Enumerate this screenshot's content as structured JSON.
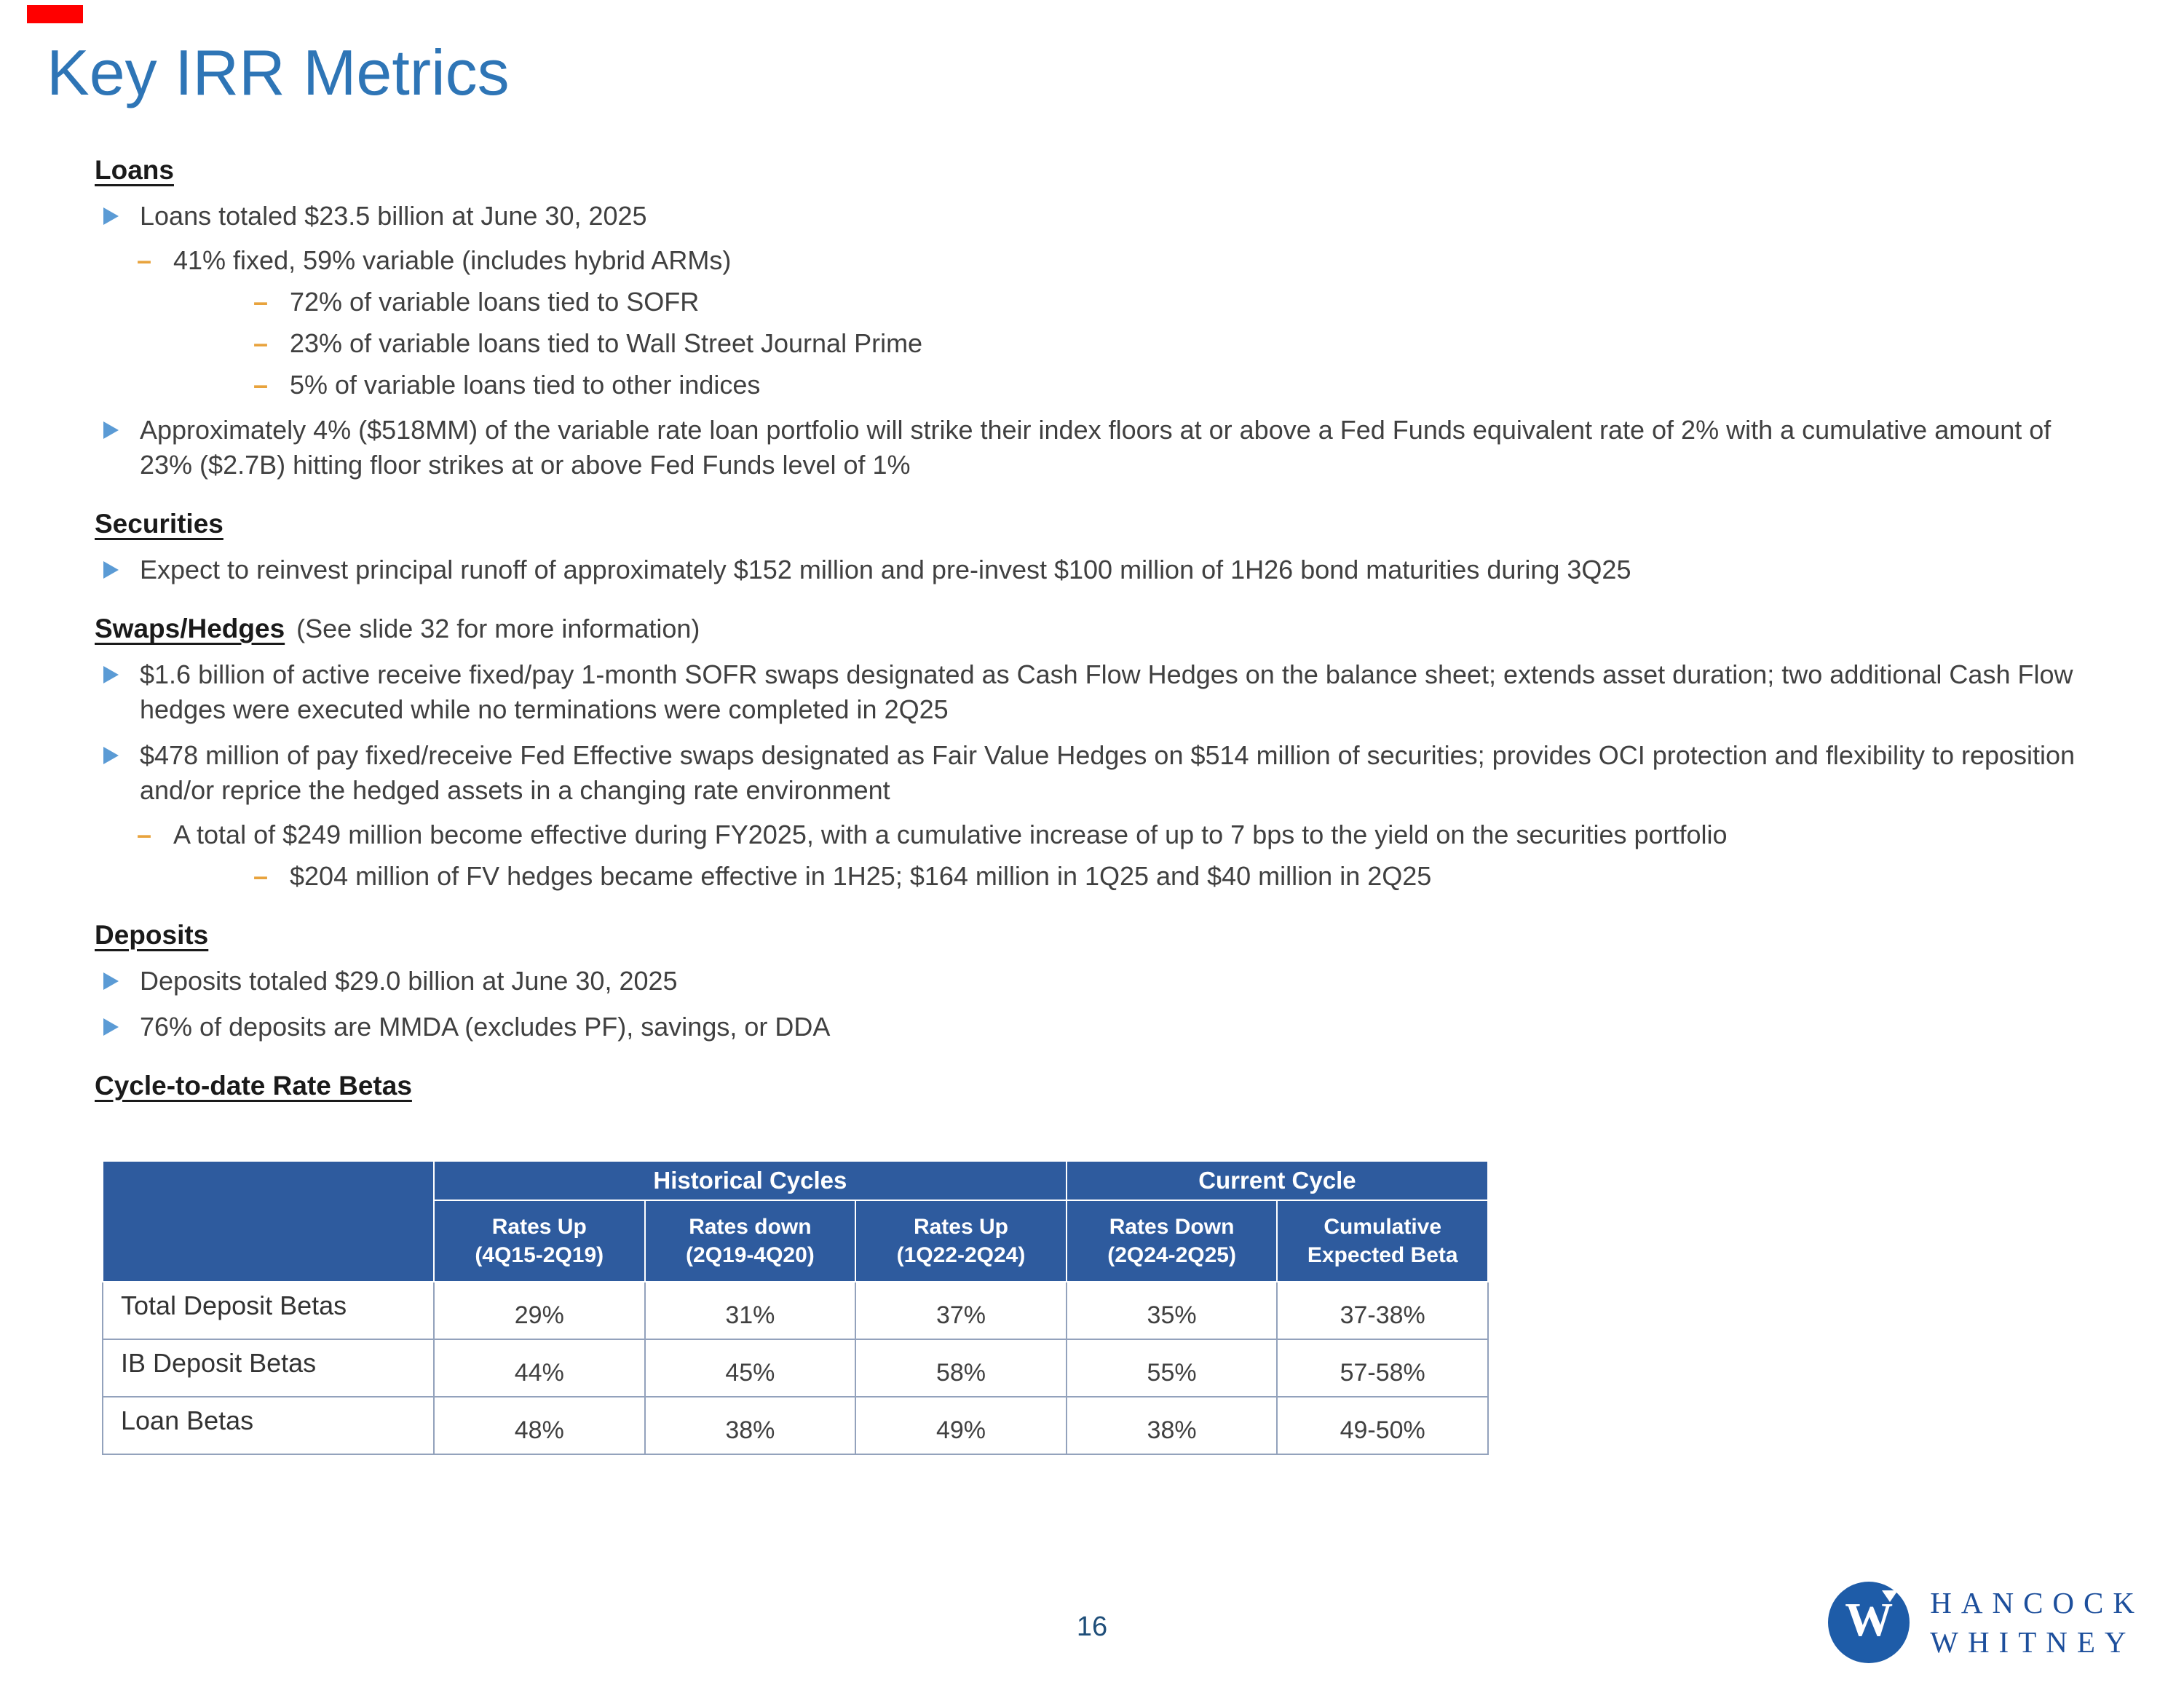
{
  "slide": {
    "title": "Key IRR Metrics",
    "page_number": "16"
  },
  "sections": {
    "loans": {
      "heading": "Loans",
      "bullet1": "Loans totaled $23.5 billion at June 30, 2025",
      "sub1": "41% fixed, 59% variable (includes hybrid ARMs)",
      "sub1a": "72% of variable loans tied to SOFR",
      "sub1b": "23% of variable loans tied to Wall Street Journal Prime",
      "sub1c": "5% of variable loans tied to other indices",
      "bullet2": "Approximately 4% ($518MM) of the variable rate loan portfolio will strike their index floors at or above a Fed Funds equivalent rate of 2% with a cumulative amount of 23% ($2.7B) hitting floor strikes at or above Fed Funds level of 1%"
    },
    "securities": {
      "heading": "Securities",
      "bullet1": "Expect to reinvest principal runoff of approximately $152 million and pre-invest $100 million of 1H26 bond maturities during 3Q25"
    },
    "swaps": {
      "heading": "Swaps/Hedges",
      "note": "(See slide 32 for more information)",
      "bullet1": "$1.6 billion of active receive fixed/pay 1-month SOFR swaps designated as Cash Flow Hedges on the balance sheet; extends asset duration; two additional Cash Flow hedges were executed while no terminations were completed in 2Q25",
      "bullet2": "$478 million of pay fixed/receive Fed Effective swaps designated as Fair Value Hedges on $514 million of securities; provides OCI protection and flexibility to reposition and/or reprice the hedged assets in a changing rate environment",
      "sub1": "A total of $249 million become effective during FY2025, with a cumulative increase of up to 7 bps to the yield on the securities portfolio",
      "sub1a": "$204 million of FV hedges became effective in 1H25; $164 million in 1Q25 and $40 million in 2Q25"
    },
    "deposits": {
      "heading": "Deposits",
      "bullet1": "Deposits totaled $29.0 billion at June 30, 2025",
      "bullet2": "76% of deposits are MMDA (excludes PF), savings, or DDA"
    },
    "betas": {
      "heading": "Cycle-to-date Rate Betas"
    }
  },
  "table": {
    "group_headers": [
      "Historical Cycles",
      "Current Cycle"
    ],
    "columns": [
      {
        "line1": "Rates Up",
        "line2": "(4Q15-2Q19)"
      },
      {
        "line1": "Rates down",
        "line2": "(2Q19-4Q20)"
      },
      {
        "line1": "Rates Up",
        "line2": "(1Q22-2Q24)"
      },
      {
        "line1": "Rates Down",
        "line2": "(2Q24-2Q25)"
      },
      {
        "line1": "Cumulative",
        "line2": "Expected Beta"
      }
    ],
    "rows": [
      {
        "label": "Total Deposit Betas",
        "values": [
          "29%",
          "31%",
          "37%",
          "35%",
          "37-38%"
        ]
      },
      {
        "label": "IB Deposit Betas",
        "values": [
          "44%",
          "45%",
          "58%",
          "55%",
          "57-58%"
        ]
      },
      {
        "label": "Loan Betas",
        "values": [
          "48%",
          "38%",
          "49%",
          "38%",
          "49-50%"
        ]
      }
    ]
  },
  "logo": {
    "monogram": "W",
    "line1": "HANCOCK",
    "line2": "WHITNEY"
  },
  "colors": {
    "title_blue": "#2E75B6",
    "table_header_blue": "#2E5B9E",
    "bullet_arrow_blue": "#5B9BD5",
    "dash_gold": "#E8A33D",
    "logo_navy": "#1D4F9C",
    "accent_red": "#FF0000",
    "body_text": "#404040"
  }
}
